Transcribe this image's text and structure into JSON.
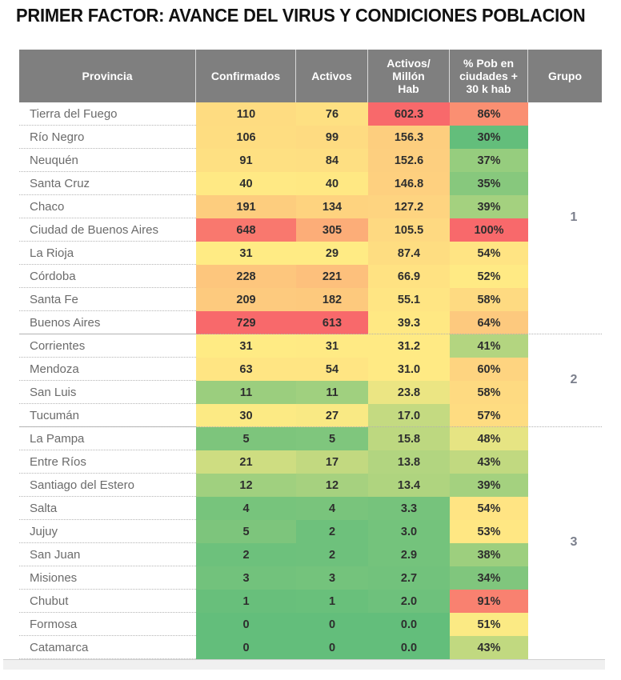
{
  "title": "PRIMER FACTOR: AVANCE DEL VIRUS Y CONDICIONES POBLACION",
  "chart_data": {
    "type": "table",
    "title": "PRIMER FACTOR: AVANCE DEL VIRUS Y CONDICIONES POBLACION",
    "columns": [
      "Provincia",
      "Confirmados",
      "Activos",
      "Activos/ Millón Hab",
      "% Pob en ciudades + 30 k hab",
      "Grupo"
    ],
    "color_scale": {
      "low": "#63BE7B",
      "mid": "#FFEB84",
      "high": "#F8696B"
    },
    "rows": [
      {
        "provincia": "Tierra del Fuego",
        "confirmados": "110",
        "activos": "76",
        "activos_millon": "602.3",
        "pct_pob": "86%"
      },
      {
        "provincia": "Río Negro",
        "confirmados": "106",
        "activos": "99",
        "activos_millon": "156.3",
        "pct_pob": "30%"
      },
      {
        "provincia": "Neuquén",
        "confirmados": "91",
        "activos": "84",
        "activos_millon": "152.6",
        "pct_pob": "37%"
      },
      {
        "provincia": "Santa Cruz",
        "confirmados": "40",
        "activos": "40",
        "activos_millon": "146.8",
        "pct_pob": "35%"
      },
      {
        "provincia": "Chaco",
        "confirmados": "191",
        "activos": "134",
        "activos_millon": "127.2",
        "pct_pob": "39%"
      },
      {
        "provincia": "Ciudad de Buenos Aires",
        "confirmados": "648",
        "activos": "305",
        "activos_millon": "105.5",
        "pct_pob": "100%"
      },
      {
        "provincia": "La Rioja",
        "confirmados": "31",
        "activos": "29",
        "activos_millon": "87.4",
        "pct_pob": "54%"
      },
      {
        "provincia": "Córdoba",
        "confirmados": "228",
        "activos": "221",
        "activos_millon": "66.9",
        "pct_pob": "52%"
      },
      {
        "provincia": "Santa Fe",
        "confirmados": "209",
        "activos": "182",
        "activos_millon": "55.1",
        "pct_pob": "58%"
      },
      {
        "provincia": "Buenos Aires",
        "confirmados": "729",
        "activos": "613",
        "activos_millon": "39.3",
        "pct_pob": "64%"
      },
      {
        "provincia": "Corrientes",
        "confirmados": "31",
        "activos": "31",
        "activos_millon": "31.2",
        "pct_pob": "41%"
      },
      {
        "provincia": "Mendoza",
        "confirmados": "63",
        "activos": "54",
        "activos_millon": "31.0",
        "pct_pob": "60%"
      },
      {
        "provincia": "San Luis",
        "confirmados": "11",
        "activos": "11",
        "activos_millon": "23.8",
        "pct_pob": "58%"
      },
      {
        "provincia": "Tucumán",
        "confirmados": "30",
        "activos": "27",
        "activos_millon": "17.0",
        "pct_pob": "57%"
      },
      {
        "provincia": "La Pampa",
        "confirmados": "5",
        "activos": "5",
        "activos_millon": "15.8",
        "pct_pob": "48%"
      },
      {
        "provincia": "Entre Ríos",
        "confirmados": "21",
        "activos": "17",
        "activos_millon": "13.8",
        "pct_pob": "43%"
      },
      {
        "provincia": "Santiago del Estero",
        "confirmados": "12",
        "activos": "12",
        "activos_millon": "13.4",
        "pct_pob": "39%"
      },
      {
        "provincia": "Salta",
        "confirmados": "4",
        "activos": "4",
        "activos_millon": "3.3",
        "pct_pob": "54%"
      },
      {
        "provincia": "Jujuy",
        "confirmados": "5",
        "activos": "2",
        "activos_millon": "3.0",
        "pct_pob": "53%"
      },
      {
        "provincia": "San Juan",
        "confirmados": "2",
        "activos": "2",
        "activos_millon": "2.9",
        "pct_pob": "38%"
      },
      {
        "provincia": "Misiones",
        "confirmados": "3",
        "activos": "3",
        "activos_millon": "2.7",
        "pct_pob": "34%"
      },
      {
        "provincia": "Chubut",
        "confirmados": "1",
        "activos": "1",
        "activos_millon": "2.0",
        "pct_pob": "91%"
      },
      {
        "provincia": "Formosa",
        "confirmados": "0",
        "activos": "0",
        "activos_millon": "0.0",
        "pct_pob": "51%"
      },
      {
        "provincia": "Catamarca",
        "confirmados": "0",
        "activos": "0",
        "activos_millon": "0.0",
        "pct_pob": "43%"
      }
    ],
    "groups": [
      {
        "label": "1",
        "first_row": 0,
        "last_row": 9
      },
      {
        "label": "2",
        "first_row": 10,
        "last_row": 13
      },
      {
        "label": "3",
        "first_row": 14,
        "last_row": 23
      }
    ]
  }
}
